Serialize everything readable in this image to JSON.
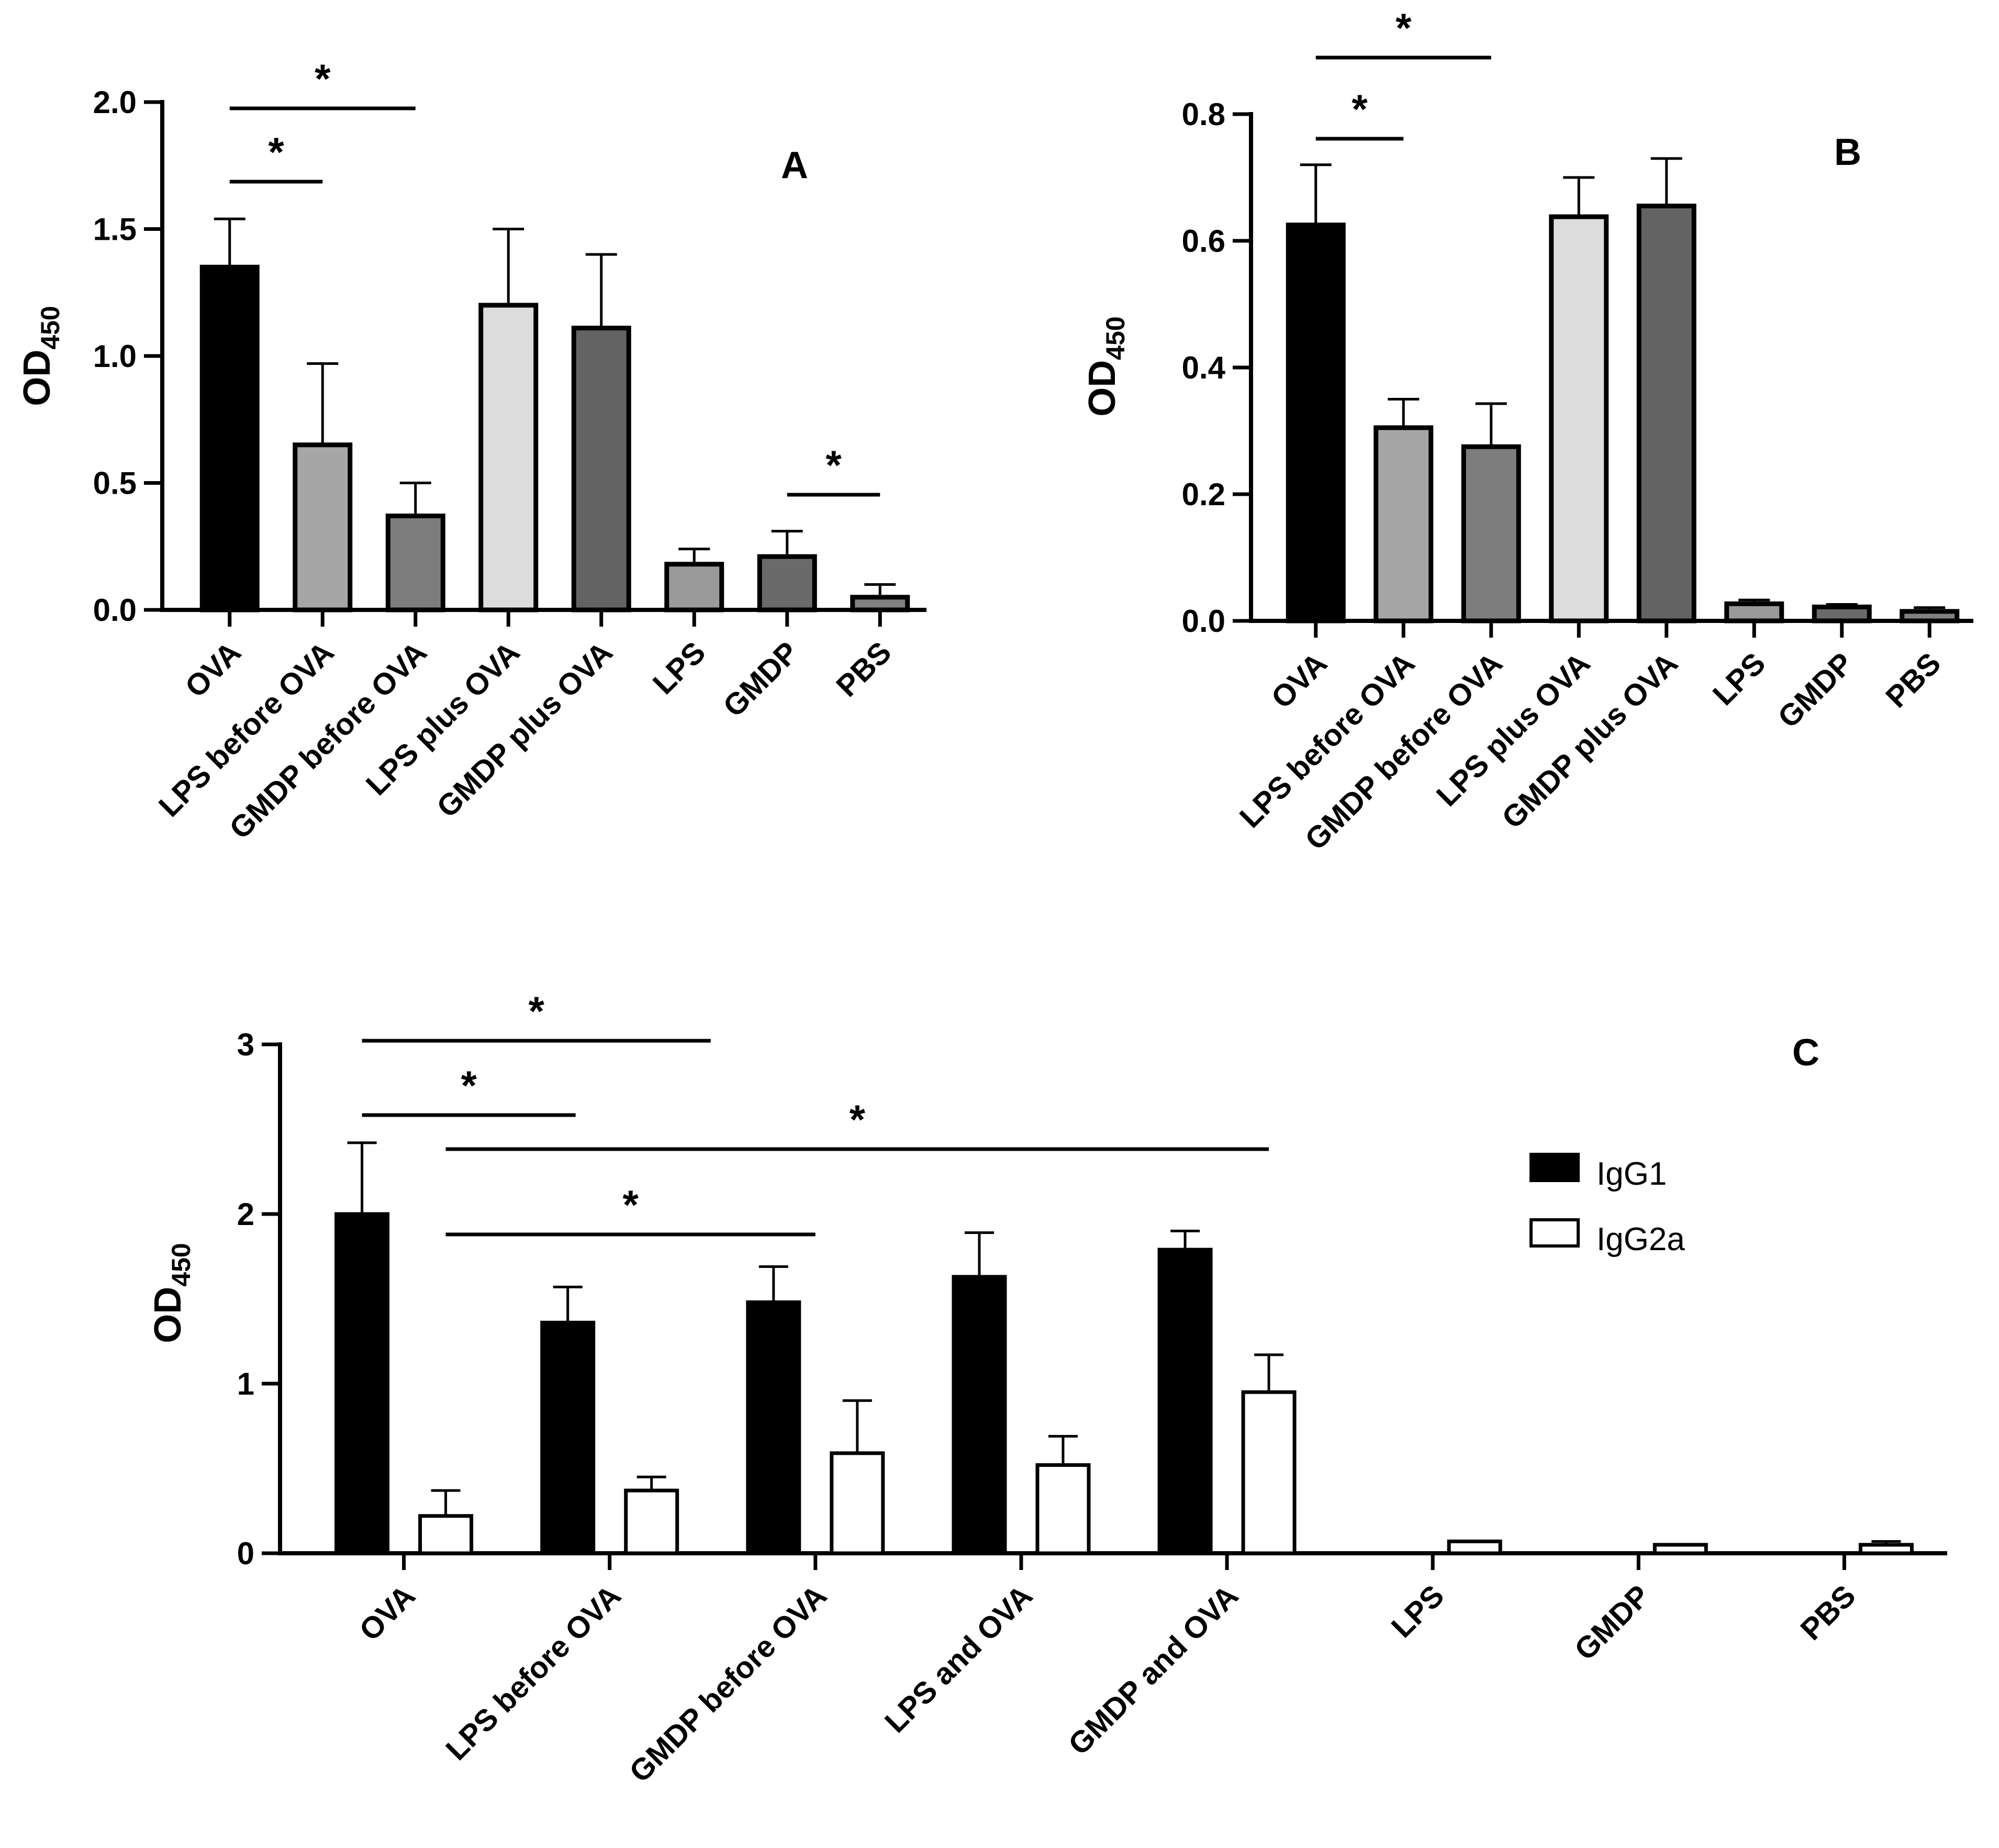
{
  "chart_data": [
    {
      "panel": "A",
      "type": "bar",
      "ylabel": "OD",
      "ylabel_subscript": "450",
      "ylim": [
        0,
        2.0
      ],
      "yticks": [
        0.0,
        0.5,
        1.0,
        1.5,
        2.0
      ],
      "ytick_labels": [
        "0.0",
        "0.5",
        "1.0",
        "1.5",
        "2.0"
      ],
      "categories": [
        "OVA",
        "LPS before OVA",
        "GMDP before OVA",
        "LPS plus OVA",
        "GMDP plus OVA",
        "LPS",
        "GMDP",
        "PBS"
      ],
      "values": [
        1.35,
        0.65,
        0.37,
        1.2,
        1.11,
        0.18,
        0.21,
        0.05
      ],
      "errors": [
        0.19,
        0.32,
        0.13,
        0.3,
        0.29,
        0.06,
        0.1,
        0.05
      ],
      "bar_colors": [
        "#000000",
        "#a6a6a6",
        "#7d7d7d",
        "#dcdcdc",
        "#636363",
        "#9a9a9a",
        "#6a6a6a",
        "#808080"
      ],
      "significance": [
        {
          "from": "OVA",
          "to": "LPS before OVA",
          "label": "*"
        },
        {
          "from": "OVA",
          "to": "GMDP before OVA",
          "label": "*"
        },
        {
          "from": "GMDP",
          "to": "PBS",
          "label": "*"
        }
      ]
    },
    {
      "panel": "B",
      "type": "bar",
      "ylabel": "OD",
      "ylabel_subscript": "450",
      "ylim": [
        0,
        0.8
      ],
      "yticks": [
        0.0,
        0.2,
        0.4,
        0.6,
        0.8
      ],
      "ytick_labels": [
        "0.0",
        "0.2",
        "0.4",
        "0.6",
        "0.8"
      ],
      "categories": [
        "OVA",
        "LPS before OVA",
        "GMDP before OVA",
        "LPS plus OVA",
        "GMDP plus OVA",
        "LPS",
        "GMDP",
        "PBS"
      ],
      "values": [
        0.625,
        0.305,
        0.275,
        0.638,
        0.655,
        0.027,
        0.022,
        0.015
      ],
      "errors": [
        0.095,
        0.045,
        0.068,
        0.062,
        0.075,
        0.006,
        0.004,
        0.006
      ],
      "bar_colors": [
        "#000000",
        "#a6a6a6",
        "#7d7d7d",
        "#dcdcdc",
        "#636363",
        "#9a9a9a",
        "#6a6a6a",
        "#808080"
      ],
      "significance": [
        {
          "from": "OVA",
          "to": "LPS before OVA",
          "label": "*"
        },
        {
          "from": "OVA",
          "to": "GMDP before OVA",
          "label": "*"
        }
      ]
    },
    {
      "panel": "C",
      "type": "bar",
      "ylabel": "OD",
      "ylabel_subscript": "450",
      "ylim": [
        0,
        3
      ],
      "yticks": [
        0,
        1,
        2,
        3
      ],
      "ytick_labels": [
        "0",
        "1",
        "2",
        "3"
      ],
      "categories": [
        "OVA",
        "LPS before OVA",
        "GMDP before OVA",
        "LPS and OVA",
        "GMDP and OVA",
        "LPS",
        "GMDP",
        "PBS"
      ],
      "series": [
        {
          "name": "IgG1",
          "color": "#000000",
          "values": [
            2.0,
            1.36,
            1.48,
            1.63,
            1.79,
            0,
            0,
            0
          ],
          "errors": [
            0.42,
            0.21,
            0.21,
            0.26,
            0.11,
            0,
            0,
            0
          ]
        },
        {
          "name": "IgG2a",
          "color": "#ffffff",
          "values": [
            0.22,
            0.37,
            0.59,
            0.52,
            0.95,
            0.07,
            0.05,
            0.05
          ],
          "errors": [
            0.15,
            0.08,
            0.31,
            0.17,
            0.22,
            0,
            0,
            0.02
          ]
        }
      ],
      "legend": [
        "IgG1",
        "IgG2a"
      ],
      "legend_position": "top-right",
      "significance": [
        {
          "from_series": "IgG1",
          "from": "OVA",
          "to_series": "IgG1",
          "to": "LPS before OVA",
          "label": "*"
        },
        {
          "from_series": "IgG1",
          "from": "OVA",
          "to_series": "IgG1",
          "to": "GMDP before OVA",
          "label": "*"
        },
        {
          "from_series": "IgG2a",
          "from": "OVA",
          "to_series": "IgG2a",
          "to": "GMDP and OVA",
          "label": "*"
        },
        {
          "from_series": "IgG2a",
          "from": "OVA",
          "to_series": "IgG2a",
          "to": "GMDP before OVA",
          "label": "*"
        }
      ]
    }
  ]
}
